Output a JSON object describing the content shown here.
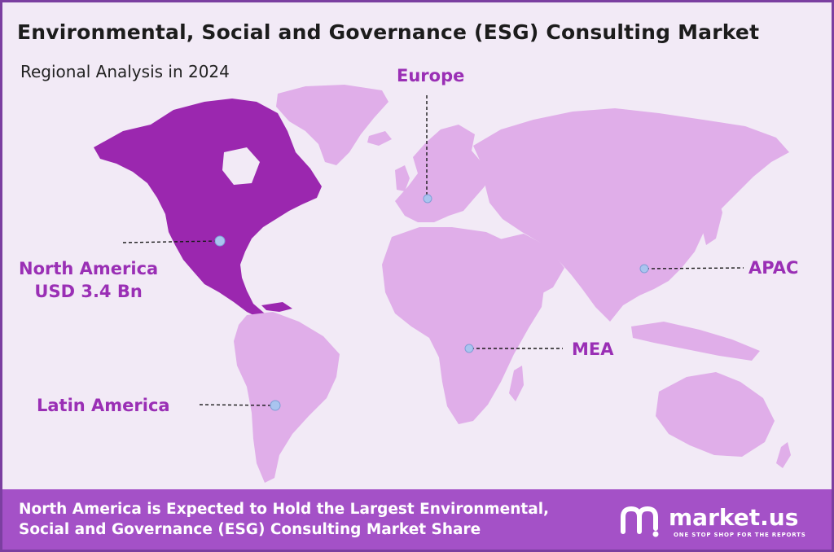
{
  "header": {
    "title": "Environmental, Social and Governance (ESG) Consulting Market",
    "subtitle": "Regional Analysis in 2024"
  },
  "regions": {
    "north_america": {
      "name": "North America",
      "value": "USD 3.4 Bn",
      "color": "#9b27af"
    },
    "europe": {
      "name": "Europe",
      "color": "#e0aee9"
    },
    "apac": {
      "name": "APAC",
      "color": "#e0aee9"
    },
    "mea": {
      "name": "MEA",
      "color": "#e0aee9"
    },
    "latin_america": {
      "name": "Latin America",
      "color": "#e0aee9"
    }
  },
  "footer": {
    "line1": "North America is Expected to Hold the Largest Environmental,",
    "line2": "Social and Governance (ESG) Consulting Market Share"
  },
  "logo": {
    "name": "market.us",
    "tagline": "ONE STOP SHOP FOR THE REPORTS"
  },
  "colors": {
    "accent": "#9a2fb5",
    "footer_bg": "#a451c7",
    "land": "#e0aee9",
    "highlight": "#9b27af",
    "marker": "#a9c4ef"
  }
}
